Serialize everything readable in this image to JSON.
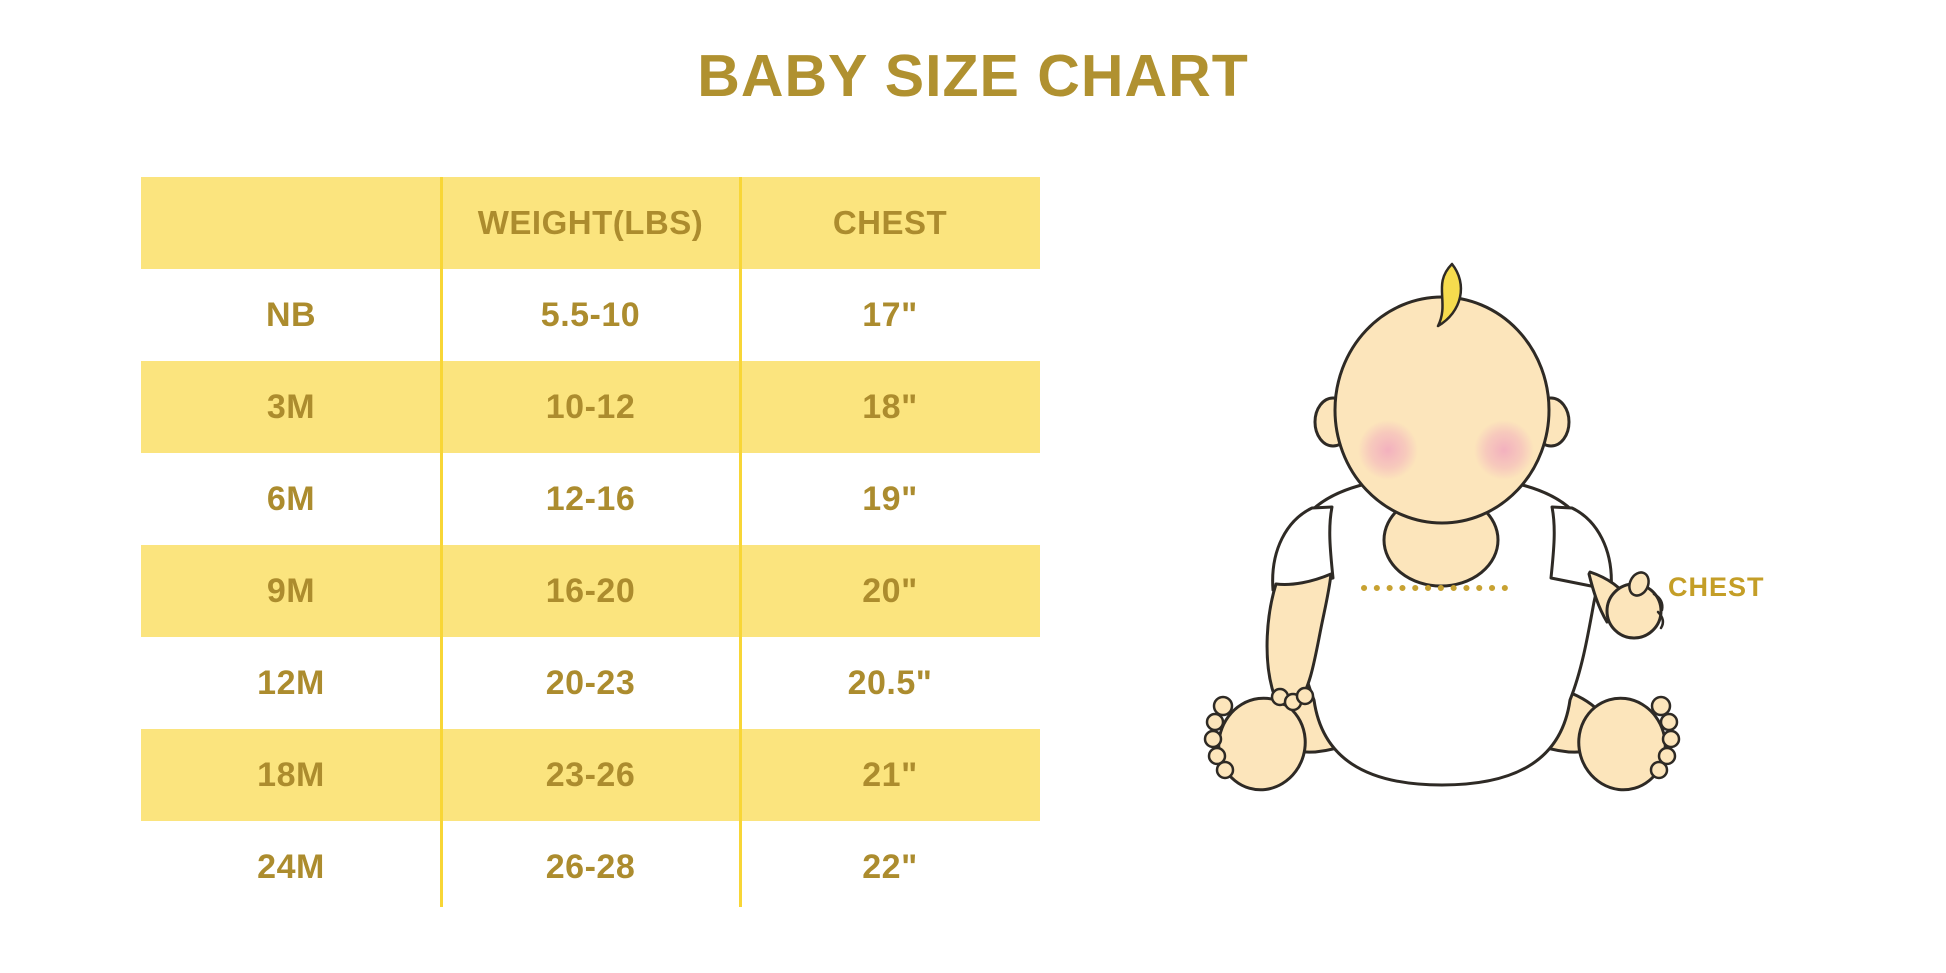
{
  "chart_data": {
    "type": "table",
    "title": "BABY SIZE CHART",
    "columns": [
      "",
      "WEIGHT(LBS)",
      "CHEST"
    ],
    "row_keys": [
      "size",
      "weight_lbs",
      "chest"
    ],
    "rows": [
      {
        "size": "NB",
        "weight_lbs": "5.5-10",
        "chest": "17\""
      },
      {
        "size": "3M",
        "weight_lbs": "10-12",
        "chest": "18\""
      },
      {
        "size": "6M",
        "weight_lbs": "12-16",
        "chest": "19\""
      },
      {
        "size": "9M",
        "weight_lbs": "16-20",
        "chest": "20\""
      },
      {
        "size": "12M",
        "weight_lbs": "20-23",
        "chest": "20.5\""
      },
      {
        "size": "18M",
        "weight_lbs": "23-26",
        "chest": "21\""
      },
      {
        "size": "24M",
        "weight_lbs": "26-28",
        "chest": "22\""
      }
    ],
    "layout": {
      "header_fill": "yellow",
      "body_row_fills_alternate": [
        "white",
        "yellow"
      ],
      "column_dividers": 2
    }
  },
  "illustration": {
    "label": "CHEST",
    "description": "seated cartoon baby in white onesie with dotted chest measurement line"
  },
  "colors": {
    "background": "#FFFFFF",
    "row_yellow": "#FBE47E",
    "divider_yellow": "#F8D636",
    "table_text_gold": "#AC8C2E",
    "title_gold": "#B09130",
    "label_gold": "#C49E27",
    "dotted_line_gold": "#C8A232",
    "skin": "#FCE5BB",
    "blush_pink": "#F2AEBE",
    "hair_yellow": "#F6DC4E",
    "onesie_white": "#FFFFFF",
    "outline": "#2E2A25"
  }
}
